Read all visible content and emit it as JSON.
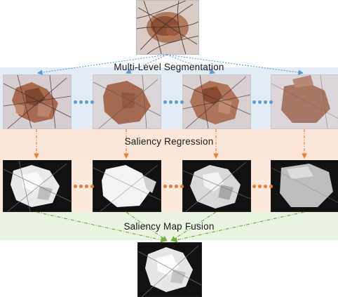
{
  "diagram": {
    "stages": [
      {
        "id": "segmentation",
        "label": "Multi-Level Segmentation"
      },
      {
        "id": "regression",
        "label": "Saliency Regression"
      },
      {
        "id": "fusion",
        "label": "Saliency Map Fusion"
      }
    ]
  },
  "colors": {
    "segmentation_band": "#dde7f3",
    "regression_band": "#fbe4d6",
    "fusion_band": "#e6f0da",
    "seg_arrow": "#5b9bd5",
    "reg_arrow": "#ed7d31",
    "fusion_arrow": "#70ad47",
    "seg_dots": "#5b9bd5",
    "reg_dots": "#ed7d31"
  }
}
